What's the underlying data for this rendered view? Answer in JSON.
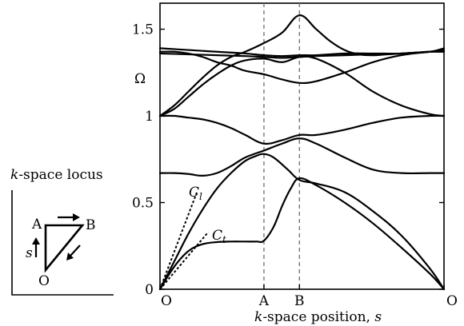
{
  "chart_data": {
    "type": "line",
    "ylabel": "Ω",
    "xlabel_prefix": "k",
    "xlabel_suffix": "-space position, ",
    "xlabel_var": "s",
    "ylim": [
      0,
      1.65
    ],
    "xlim": [
      0,
      1
    ],
    "y_ticks": [
      {
        "value": 0,
        "label": "0"
      },
      {
        "value": 0.5,
        "label": "0.5"
      },
      {
        "value": 1,
        "label": "1"
      },
      {
        "value": 1.5,
        "label": "1.5"
      }
    ],
    "x_ticks": [
      {
        "value": 0,
        "label": "O"
      },
      {
        "value": 0.366,
        "label": "A"
      },
      {
        "value": 0.491,
        "label": "B"
      },
      {
        "value": 1,
        "label": "O"
      }
    ],
    "vertical_lines": [
      0.366,
      0.491
    ],
    "grid": false,
    "series": [
      {
        "x": [
          0,
          0.05,
          0.1,
          0.15,
          0.2,
          0.25,
          0.3,
          0.34,
          0.366,
          0.4,
          0.43,
          0.46,
          0.491,
          0.55,
          0.65,
          0.75,
          0.85,
          0.95,
          1.0
        ],
        "values": [
          0,
          0.13,
          0.22,
          0.26,
          0.272,
          0.275,
          0.275,
          0.275,
          0.28,
          0.36,
          0.48,
          0.58,
          0.64,
          0.6,
          0.5,
          0.38,
          0.24,
          0.09,
          0
        ]
      },
      {
        "x": [
          0,
          0.05,
          0.1,
          0.15,
          0.2,
          0.25,
          0.3,
          0.34,
          0.366,
          0.4,
          0.45,
          0.491,
          0.55,
          0.65,
          0.75,
          0.85,
          0.95,
          1.0
        ],
        "values": [
          0,
          0.16,
          0.32,
          0.46,
          0.58,
          0.67,
          0.74,
          0.77,
          0.78,
          0.76,
          0.69,
          0.63,
          0.61,
          0.56,
          0.45,
          0.31,
          0.12,
          0
        ]
      },
      {
        "x": [
          0,
          0.05,
          0.1,
          0.15,
          0.2,
          0.25,
          0.3,
          0.366,
          0.43,
          0.491,
          0.55,
          0.65,
          0.75,
          0.85,
          0.95,
          1.0
        ],
        "values": [
          0.67,
          0.67,
          0.665,
          0.655,
          0.67,
          0.71,
          0.76,
          0.8,
          0.84,
          0.87,
          0.84,
          0.76,
          0.69,
          0.67,
          0.67,
          0.67
        ]
      },
      {
        "x": [
          0,
          0.05,
          0.1,
          0.15,
          0.2,
          0.25,
          0.3,
          0.366,
          0.43,
          0.491,
          0.55,
          0.65,
          0.75,
          0.85,
          0.95,
          1.0
        ],
        "values": [
          1.0,
          1.0,
          0.99,
          0.98,
          0.96,
          0.93,
          0.89,
          0.84,
          0.86,
          0.89,
          0.89,
          0.92,
          0.96,
          0.99,
          1.0,
          1.0
        ]
      },
      {
        "x": [
          0,
          0.05,
          0.1,
          0.15,
          0.2,
          0.25,
          0.3,
          0.366,
          0.43,
          0.491,
          0.55,
          0.65,
          0.75,
          0.85,
          0.95,
          1.0
        ],
        "values": [
          1.0,
          1.04,
          1.11,
          1.18,
          1.24,
          1.29,
          1.32,
          1.33,
          1.31,
          1.34,
          1.33,
          1.25,
          1.14,
          1.06,
          1.01,
          1.0
        ]
      },
      {
        "x": [
          0,
          0.05,
          0.1,
          0.15,
          0.2,
          0.25,
          0.3,
          0.366,
          0.43,
          0.491,
          0.55,
          0.65,
          0.75,
          0.85,
          0.95,
          1.0
        ],
        "values": [
          1.37,
          1.37,
          1.36,
          1.34,
          1.31,
          1.29,
          1.26,
          1.24,
          1.21,
          1.19,
          1.2,
          1.25,
          1.31,
          1.35,
          1.37,
          1.38
        ]
      },
      {
        "x": [
          0,
          0.1,
          0.2,
          0.3,
          0.366,
          0.43,
          0.491,
          0.55,
          0.65,
          0.75,
          0.85,
          0.95,
          1.0
        ],
        "values": [
          1.39,
          1.38,
          1.37,
          1.36,
          1.35,
          1.345,
          1.35,
          1.35,
          1.36,
          1.36,
          1.36,
          1.37,
          1.37
        ]
      },
      {
        "x": [
          0,
          0.1,
          0.2,
          0.3,
          0.366,
          0.43,
          0.491,
          0.55,
          0.65,
          0.75,
          0.85,
          0.95,
          1.0
        ],
        "values": [
          1.36,
          1.355,
          1.35,
          1.345,
          1.34,
          1.335,
          1.34,
          1.345,
          1.35,
          1.355,
          1.36,
          1.37,
          1.39
        ]
      },
      {
        "x": [
          0,
          0.05,
          0.1,
          0.15,
          0.2,
          0.25,
          0.3,
          0.366,
          0.43,
          0.491,
          0.55,
          0.6,
          0.65,
          0.7,
          0.75,
          0.8,
          0.85,
          0.9,
          0.95,
          1.0
        ],
        "values": [
          1.0,
          1.06,
          1.14,
          1.22,
          1.29,
          1.34,
          1.37,
          1.42,
          1.48,
          1.58,
          1.5,
          1.43,
          1.38,
          1.355,
          1.35,
          1.355,
          1.36,
          1.365,
          1.37,
          1.37
        ]
      }
    ],
    "asymptotes": [
      {
        "label": "C",
        "subscript": "l",
        "x": [
          0,
          0.13
        ],
        "values": [
          0,
          0.56
        ]
      },
      {
        "label": "C",
        "subscript": "t",
        "x": [
          0,
          0.17
        ],
        "values": [
          0,
          0.33
        ]
      }
    ]
  },
  "inset": {
    "title_var": "k",
    "title_rest": "-space locus",
    "points": [
      {
        "label": "A"
      },
      {
        "label": "B"
      },
      {
        "label": "O"
      }
    ],
    "direction_label": "s"
  }
}
